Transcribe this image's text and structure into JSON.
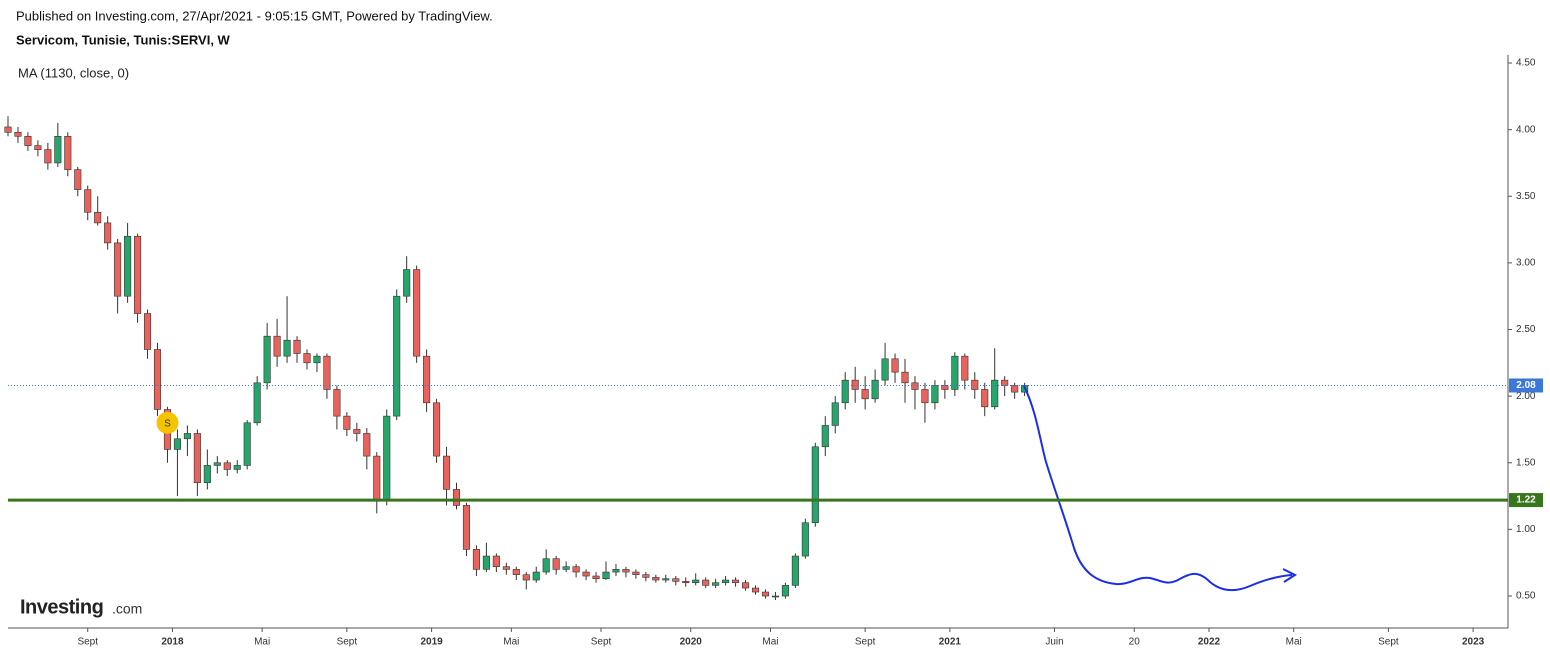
{
  "chart_data": {
    "type": "candlestick",
    "published": "Published on Investing.com, 27/Apr/2021 - 9:05:15 GMT, Powered by TradingView.",
    "title": "Servicom, Tunisie, Tunis:SERVI, W",
    "indicator": "MA (1130, close, 0)",
    "logo": {
      "brand": "Investing",
      "suffix": ".com"
    },
    "up_color": "#26a66b",
    "down_color": "#e8635b",
    "xlim": [
      0,
      301
    ],
    "xticks": [
      {
        "value": 16,
        "label": "Sept"
      },
      {
        "value": 33,
        "label": "2018"
      },
      {
        "value": 51,
        "label": "Mai"
      },
      {
        "value": 68,
        "label": "Sept"
      },
      {
        "value": 85,
        "label": "2019"
      },
      {
        "value": 101,
        "label": "Mai"
      },
      {
        "value": 119,
        "label": "Sept"
      },
      {
        "value": 137,
        "label": "2020"
      },
      {
        "value": 153,
        "label": "Mai"
      },
      {
        "value": 172,
        "label": "Sept"
      },
      {
        "value": 189,
        "label": "2021"
      },
      {
        "value": 210,
        "label": "Juin"
      },
      {
        "value": 226,
        "label": "20"
      },
      {
        "value": 241,
        "label": "2022"
      },
      {
        "value": 258,
        "label": "Mai"
      },
      {
        "value": 277,
        "label": "Sept"
      },
      {
        "value": 294,
        "label": "2023"
      }
    ],
    "ylim": [
      0.26,
      4.56
    ],
    "yticks": [
      {
        "value": 0.5,
        "label": "0.50"
      },
      {
        "value": 1,
        "label": "1.00"
      },
      {
        "value": 1.5,
        "label": "1.50"
      },
      {
        "value": 2,
        "label": "2.00"
      },
      {
        "value": 2.5,
        "label": "2.50"
      },
      {
        "value": 3,
        "label": "3.00"
      },
      {
        "value": 3.5,
        "label": "3.50"
      },
      {
        "value": 4,
        "label": "4.00"
      },
      {
        "value": 4.5,
        "label": "4.50"
      }
    ],
    "hlines": [
      {
        "value": 2.08,
        "color": "#3c78d8",
        "style": "dotted"
      },
      {
        "value": 1.22,
        "color": "#38761d",
        "style": "solid"
      }
    ],
    "marker": {
      "text": "S",
      "x": 32,
      "value": 1.8,
      "color": "#f5c400"
    },
    "x": [
      0,
      2,
      4,
      6,
      8,
      10,
      12,
      14,
      16,
      18,
      20,
      22,
      24,
      26,
      28,
      30,
      32,
      34,
      36,
      38,
      40,
      42,
      44,
      46,
      48,
      50,
      52,
      54,
      56,
      58,
      60,
      62,
      64,
      66,
      68,
      70,
      72,
      74,
      76,
      78,
      80,
      82,
      84,
      86,
      88,
      90,
      92,
      94,
      96,
      98,
      100,
      102,
      104,
      106,
      108,
      110,
      112,
      114,
      116,
      118,
      120,
      122,
      124,
      126,
      128,
      130,
      132,
      134,
      136,
      138,
      140,
      142,
      144,
      146,
      148,
      150,
      152,
      154,
      156,
      158,
      160,
      162,
      164,
      166,
      168,
      170,
      172,
      174,
      176,
      178,
      180,
      182,
      184,
      186,
      188,
      190,
      192,
      194,
      196,
      198,
      200,
      202,
      204
    ],
    "open": [
      4.02,
      3.98,
      3.95,
      3.88,
      3.85,
      3.75,
      3.95,
      3.7,
      3.55,
      3.38,
      3.3,
      3.15,
      2.75,
      3.2,
      2.62,
      2.35,
      1.9,
      1.6,
      1.68,
      1.72,
      1.35,
      1.48,
      1.5,
      1.45,
      1.48,
      1.8,
      2.1,
      2.45,
      2.3,
      2.42,
      2.32,
      2.25,
      2.3,
      2.05,
      1.85,
      1.75,
      1.72,
      1.55,
      1.22,
      1.85,
      2.75,
      2.95,
      2.3,
      1.95,
      1.55,
      1.3,
      1.18,
      0.85,
      0.7,
      0.8,
      0.72,
      0.7,
      0.66,
      0.62,
      0.68,
      0.78,
      0.7,
      0.72,
      0.68,
      0.65,
      0.63,
      0.68,
      0.7,
      0.68,
      0.66,
      0.64,
      0.62,
      0.63,
      0.61,
      0.6,
      0.62,
      0.58,
      0.6,
      0.62,
      0.6,
      0.56,
      0.53,
      0.5,
      0.5,
      0.58,
      0.8,
      1.05,
      1.62,
      1.78,
      1.95,
      2.12,
      2.05,
      1.98,
      2.12,
      2.28,
      2.18,
      2.1,
      2.05,
      1.95,
      2.08,
      2.05,
      2.3,
      2.12,
      2.05,
      1.92,
      2.12,
      2.08,
      2.03
    ],
    "high": [
      4.1,
      4.02,
      3.98,
      3.92,
      3.9,
      4.05,
      3.98,
      3.72,
      3.58,
      3.5,
      3.35,
      3.18,
      3.3,
      3.22,
      2.65,
      2.4,
      1.92,
      1.75,
      1.78,
      1.75,
      1.6,
      1.55,
      1.52,
      1.52,
      1.82,
      2.15,
      2.55,
      2.58,
      2.75,
      2.45,
      2.35,
      2.32,
      2.32,
      2.08,
      1.88,
      1.8,
      1.76,
      1.58,
      1.9,
      2.8,
      3.05,
      2.98,
      2.35,
      1.98,
      1.62,
      1.35,
      1.2,
      0.88,
      0.9,
      0.82,
      0.75,
      0.72,
      0.68,
      0.72,
      0.85,
      0.8,
      0.76,
      0.74,
      0.7,
      0.68,
      0.76,
      0.74,
      0.72,
      0.7,
      0.68,
      0.66,
      0.66,
      0.65,
      0.64,
      0.67,
      0.64,
      0.63,
      0.65,
      0.64,
      0.62,
      0.58,
      0.55,
      0.53,
      0.6,
      0.82,
      1.08,
      1.65,
      1.85,
      2.0,
      2.18,
      2.22,
      2.15,
      2.2,
      2.4,
      2.32,
      2.28,
      2.15,
      2.1,
      2.12,
      2.12,
      2.33,
      2.32,
      2.18,
      2.1,
      2.36,
      2.15,
      2.1,
      2.1
    ],
    "low": [
      3.95,
      3.9,
      3.84,
      3.8,
      3.7,
      3.72,
      3.65,
      3.5,
      3.32,
      3.28,
      3.1,
      2.62,
      2.7,
      2.55,
      2.28,
      1.85,
      1.5,
      1.25,
      1.55,
      1.25,
      1.3,
      1.42,
      1.4,
      1.42,
      1.45,
      1.78,
      2.05,
      2.22,
      2.25,
      2.25,
      2.2,
      2.18,
      1.98,
      1.75,
      1.7,
      1.66,
      1.45,
      1.12,
      1.18,
      1.82,
      2.7,
      2.25,
      1.88,
      1.5,
      1.18,
      1.15,
      0.8,
      0.65,
      0.68,
      0.68,
      0.66,
      0.62,
      0.55,
      0.6,
      0.66,
      0.66,
      0.68,
      0.64,
      0.62,
      0.6,
      0.62,
      0.65,
      0.64,
      0.63,
      0.61,
      0.6,
      0.6,
      0.58,
      0.57,
      0.58,
      0.56,
      0.56,
      0.58,
      0.57,
      0.54,
      0.51,
      0.48,
      0.47,
      0.48,
      0.56,
      0.78,
      1.02,
      1.55,
      1.72,
      1.9,
      1.95,
      1.9,
      1.95,
      2.08,
      2.1,
      1.95,
      1.9,
      1.8,
      1.9,
      1.98,
      2.0,
      2.05,
      1.98,
      1.85,
      1.9,
      2.0,
      1.98,
      2.0
    ],
    "close": [
      3.98,
      3.95,
      3.88,
      3.85,
      3.75,
      3.95,
      3.7,
      3.55,
      3.38,
      3.3,
      3.15,
      2.75,
      3.2,
      2.62,
      2.35,
      1.9,
      1.6,
      1.68,
      1.72,
      1.35,
      1.48,
      1.5,
      1.45,
      1.48,
      1.8,
      2.1,
      2.45,
      2.3,
      2.42,
      2.32,
      2.25,
      2.3,
      2.05,
      1.85,
      1.75,
      1.72,
      1.55,
      1.22,
      1.85,
      2.75,
      2.95,
      2.3,
      1.95,
      1.55,
      1.3,
      1.18,
      0.85,
      0.7,
      0.8,
      0.72,
      0.7,
      0.66,
      0.62,
      0.68,
      0.78,
      0.7,
      0.72,
      0.68,
      0.65,
      0.63,
      0.68,
      0.7,
      0.68,
      0.66,
      0.64,
      0.62,
      0.63,
      0.61,
      0.6,
      0.62,
      0.58,
      0.6,
      0.62,
      0.6,
      0.56,
      0.53,
      0.5,
      0.5,
      0.58,
      0.8,
      1.05,
      1.62,
      1.78,
      1.95,
      2.12,
      2.05,
      1.98,
      2.12,
      2.28,
      2.18,
      2.1,
      2.05,
      1.95,
      2.08,
      2.05,
      2.3,
      2.12,
      2.05,
      1.92,
      2.12,
      2.08,
      2.03,
      2.08
    ]
  }
}
